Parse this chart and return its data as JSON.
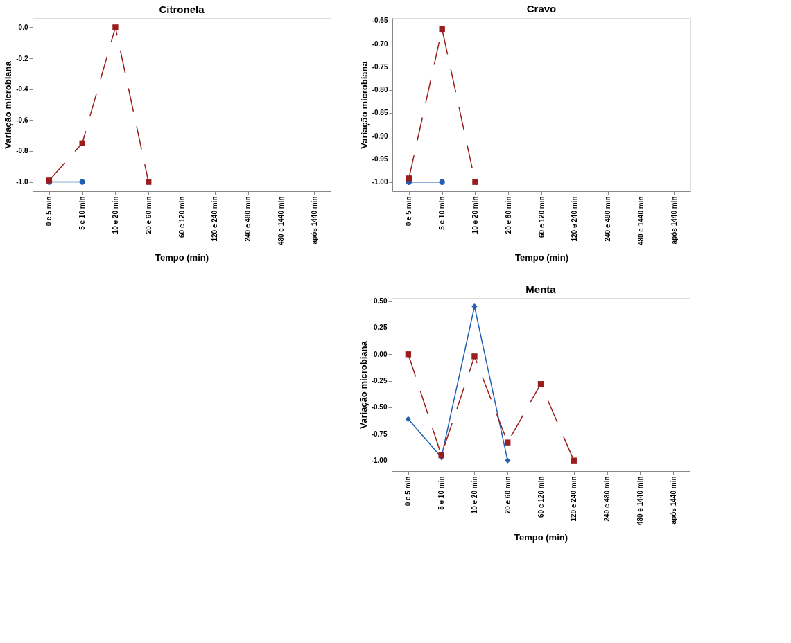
{
  "chart_data": [
    {
      "type": "line",
      "title": "Citronela",
      "xlabel": "Tempo (min)",
      "ylabel": "Variação microbiana",
      "categories": [
        "0 e 5 min",
        "5 e 10 min",
        "10 e 20 min",
        "20 e 60 min",
        "60 e 120 min",
        "120 e 240 min",
        "240 e 480 min",
        "480 e 1440 min",
        "após 1440 min"
      ],
      "ylim": [
        -1.06,
        0.06
      ],
      "yticks": [
        {
          "value": 0,
          "label": "0.0"
        },
        -0.2,
        -0.4,
        -0.6,
        -0.8,
        {
          "value": -1,
          "label": "-1.0"
        }
      ],
      "grid": false,
      "legend": false,
      "series": [
        {
          "color": "#1f5fb4",
          "marker": "circle",
          "line_style": "solid",
          "values": [
            -1.0,
            -1.0,
            null,
            null,
            null,
            null,
            null,
            null,
            null
          ]
        },
        {
          "color": "#9b1c1c",
          "marker": "square",
          "line_style": "dashed",
          "values": [
            -0.99,
            -0.75,
            0.0,
            -1.0,
            null,
            null,
            null,
            null,
            null
          ]
        }
      ]
    },
    {
      "type": "line",
      "title": "Cravo",
      "xlabel": "Tempo (min)",
      "ylabel": "Variação microbiana",
      "categories": [
        "0 e 5 min",
        "5 e 10 min",
        "10 e 20 min",
        "20 e 60 min",
        "60 e 120 min",
        "120 e 240 min",
        "240 e 480 min",
        "480 e 1440 min",
        "após 1440 min"
      ],
      "ylim": [
        -1.02,
        -0.644
      ],
      "yticks": [
        -0.65,
        {
          "value": -0.7,
          "label": "-0.70"
        },
        -0.75,
        {
          "value": -0.8,
          "label": "-0.80"
        },
        -0.85,
        {
          "value": -0.9,
          "label": "-0.90"
        },
        -0.95,
        {
          "value": -1,
          "label": "-1.00"
        }
      ],
      "grid": false,
      "legend": false,
      "series": [
        {
          "color": "#1f5fb4",
          "marker": "circle",
          "line_style": "solid",
          "values": [
            -1.0,
            -1.0,
            null,
            null,
            null,
            null,
            null,
            null,
            null
          ]
        },
        {
          "color": "#9b1c1c",
          "marker": "square",
          "line_style": "dashed",
          "values": [
            -0.992,
            -0.668,
            -1.0,
            null,
            null,
            null,
            null,
            null,
            null
          ]
        }
      ]
    },
    {
      "type": "line",
      "title": "Menta",
      "xlabel": "Tempo (min)",
      "ylabel": "Variação microbiana",
      "categories": [
        "0 e 5 min",
        "5 e 10 min",
        "10 e 20 min",
        "20 e 60 min",
        "60 e 120 min",
        "120 e 240 min",
        "240 e 480 min",
        "480 e 1440 min",
        "após 1440 min"
      ],
      "ylim": [
        -1.1,
        0.53
      ],
      "yticks": [
        {
          "value": 0.5,
          "label": "0.50"
        },
        0.25,
        {
          "value": 0,
          "label": "0.00"
        },
        -0.25,
        {
          "value": -0.5,
          "label": "-0.50"
        },
        -0.75,
        {
          "value": -1,
          "label": "-1.00"
        }
      ],
      "grid": false,
      "legend": false,
      "series": [
        {
          "color": "#1f5fb4",
          "marker": "diamond",
          "line_style": "solid",
          "values": [
            -0.61,
            -0.97,
            0.45,
            -1.0,
            null,
            null,
            null,
            null,
            null
          ]
        },
        {
          "color": "#9b1c1c",
          "marker": "square",
          "line_style": "dashed",
          "values": [
            0.0,
            -0.95,
            -0.02,
            -0.83,
            -0.28,
            -1.0,
            null,
            null,
            null
          ]
        }
      ]
    }
  ]
}
